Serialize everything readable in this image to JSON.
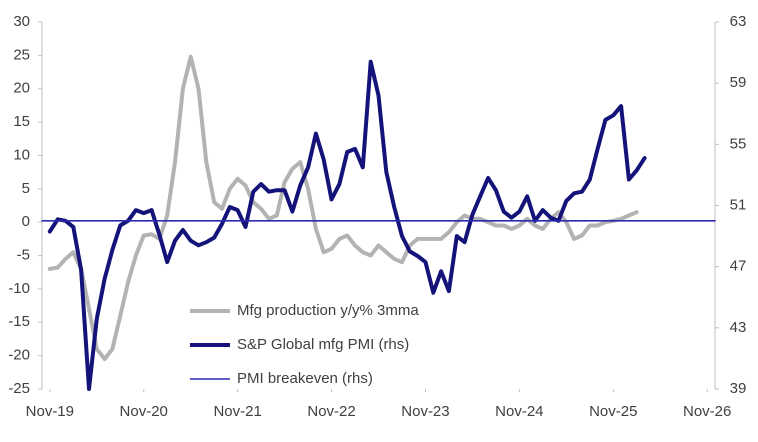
{
  "chart_data": {
    "type": "line",
    "x": [
      0,
      1,
      2,
      3,
      4,
      5,
      6,
      7,
      8,
      9,
      10,
      11,
      12,
      13,
      14,
      15,
      16,
      17,
      18,
      19,
      20,
      21,
      22,
      23,
      24,
      25,
      26,
      27,
      28,
      29,
      30,
      31,
      32,
      33,
      34,
      35,
      36,
      37,
      38,
      39,
      40,
      41,
      42,
      43,
      44,
      45,
      46,
      47,
      48,
      49,
      50,
      51,
      52,
      53,
      54,
      55,
      56,
      57,
      58,
      59,
      60,
      61,
      62,
      63,
      64,
      65,
      66,
      67,
      68,
      69,
      70,
      71,
      72,
      73,
      74,
      75,
      76,
      77
    ],
    "xlim": [
      -1,
      85
    ],
    "xticks": [
      {
        "value": 0,
        "label": "Nov-19"
      },
      {
        "value": 12,
        "label": "Nov-20"
      },
      {
        "value": 24,
        "label": "Nov-21"
      },
      {
        "value": 36,
        "label": "Nov-22"
      },
      {
        "value": 48,
        "label": "Nov-23"
      },
      {
        "value": 60,
        "label": "Nov-24"
      },
      {
        "value": 72,
        "label": "Nov-25"
      },
      {
        "value": 84,
        "label": "Nov-26"
      }
    ],
    "ylim": [
      -25,
      30
    ],
    "yticks": [
      -25,
      -20,
      -15,
      -10,
      -5,
      0,
      5,
      10,
      15,
      20,
      25,
      30
    ],
    "y2lim": [
      39,
      63
    ],
    "y2ticks": [
      39,
      43,
      47,
      51,
      55,
      59,
      63
    ],
    "legend": "bottom-center",
    "series": [
      {
        "name": "Mfg production y/y% 3mma",
        "color": "#b3b3b3",
        "values": [
          -7,
          -6.8,
          -5.5,
          -4.5,
          -7,
          -13,
          -19,
          -20.5,
          -19,
          -14,
          -9,
          -5,
          -2,
          -1.8,
          -2.5,
          1,
          9,
          20,
          24.8,
          20,
          9,
          3,
          2,
          5,
          6.5,
          5.5,
          3,
          2,
          0.5,
          1,
          6,
          8,
          9,
          5,
          -1,
          -4.5,
          -4,
          -2.5,
          -2,
          -3.5,
          -4.5,
          -5,
          -3.5,
          -4.5,
          -5.5,
          -6,
          -3.5,
          -2.5,
          -2.5,
          -2.5,
          -2.5,
          -1.5,
          0,
          1,
          0.5,
          0.5,
          0,
          -0.5,
          -0.5,
          -1,
          -0.5,
          0.5,
          -0.5,
          -1,
          0.5,
          1.5,
          0,
          -2.5,
          -2,
          -0.5,
          -0.5,
          0,
          0.2,
          0.5,
          1,
          1.5,
          null,
          null
        ]
      },
      {
        "name": "S&P Global mfg PMI (rhs)",
        "color": "#13137a",
        "axis": "y2",
        "values": [
          49.3,
          50.1,
          50,
          49.6,
          46.8,
          39,
          43.6,
          46.2,
          48.1,
          49.7,
          50,
          50.7,
          50.5,
          50.7,
          49.1,
          47.3,
          48.7,
          49.4,
          48.7,
          48.4,
          48.6,
          48.9,
          49.8,
          50.9,
          50.7,
          49.6,
          51.9,
          52.4,
          51.9,
          52,
          52,
          50.6,
          52.3,
          53.5,
          55.7,
          54,
          51.4,
          52.4,
          54.5,
          54.7,
          53.5,
          60.4,
          58.2,
          53.2,
          50.9,
          49,
          48,
          47.7,
          47.3,
          45.3,
          46.7,
          45.4,
          49,
          48.6,
          50.4,
          51.6,
          52.8,
          52,
          50.6,
          50.2,
          50.6,
          51.6,
          50,
          50.7,
          50.2,
          50,
          51.3,
          51.8,
          51.9,
          52.7,
          54.7,
          56.6,
          56.9,
          57.5,
          52.7,
          53.3,
          54.1,
          null
        ]
      },
      {
        "name": "PMI breakeven (rhs)",
        "color": "#2b2bb0",
        "axis": "y2",
        "thin": true,
        "x": [
          -1,
          85
        ],
        "values": [
          50,
          50
        ]
      }
    ]
  }
}
